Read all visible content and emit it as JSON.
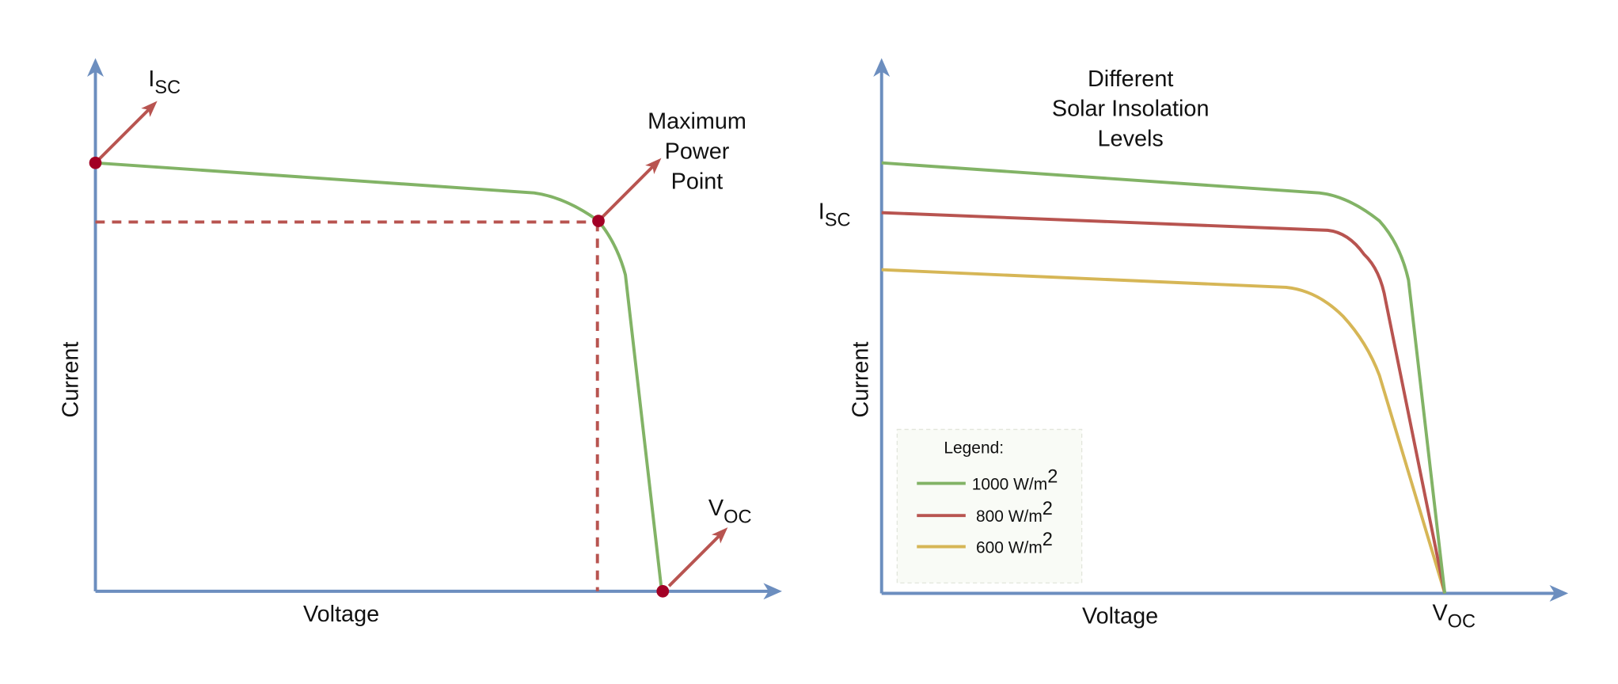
{
  "left_panel": {
    "x_axis_label": "Voltage",
    "y_axis_label": "Current",
    "isc_label": {
      "base": "I",
      "sub": "SC"
    },
    "mpp_label": [
      "Maximum",
      "Power",
      "Point"
    ],
    "voc_label": {
      "base": "V",
      "sub": "OC"
    }
  },
  "right_panel": {
    "title": [
      "Different",
      "Solar Insolation",
      "Levels"
    ],
    "x_axis_label": "Voltage",
    "y_axis_label": "Current",
    "isc_label": {
      "base": "I",
      "sub": "SC"
    },
    "voc_label": {
      "base": "V",
      "sub": "OC"
    },
    "legend": {
      "title": "Legend:",
      "entries": [
        {
          "base": "1000 W/m",
          "sup": "2"
        },
        {
          "base": "800 W/m",
          "sup": "2"
        },
        {
          "base": "600 W/m",
          "sup": "2"
        }
      ]
    }
  }
}
